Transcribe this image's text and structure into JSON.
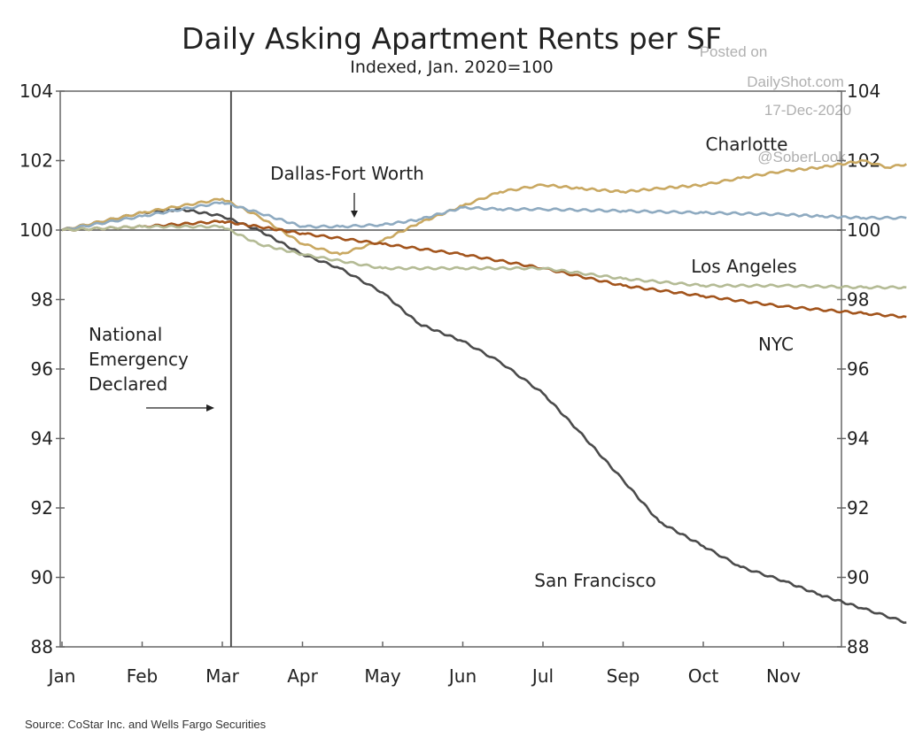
{
  "chart_data": {
    "type": "line",
    "title": "Daily Asking Apartment Rents per SF",
    "subtitle": "Indexed, Jan. 2020=100",
    "source": "Source: CoStar Inc. and Wells Fargo Securities",
    "watermark": [
      "Posted on",
      "DailyShot.com",
      "17-Dec-2020",
      "@SoberLook"
    ],
    "x_tick_labels": [
      "Jan",
      "Feb",
      "Mar",
      "Apr",
      "May",
      "Jun",
      "Jul",
      "Sep",
      "Oct",
      "Nov"
    ],
    "y_ticks": [
      88,
      90,
      92,
      94,
      96,
      98,
      100,
      102,
      104
    ],
    "ylim": [
      88,
      104
    ],
    "y_axis_sides": "both",
    "reference_line": 100,
    "grid": false,
    "event": {
      "date": "2020-03-03",
      "label_lines": [
        "National",
        "Emergency",
        "Declared"
      ]
    },
    "series": [
      {
        "name": "San Francisco",
        "color": "#4b4b4b",
        "points": [
          [
            "2020-01-01",
            100
          ],
          [
            "2020-02-01",
            100.5
          ],
          [
            "2020-02-15",
            100.6
          ],
          [
            "2020-03-01",
            100.4
          ],
          [
            "2020-03-15",
            100.0
          ],
          [
            "2020-04-01",
            99.3
          ],
          [
            "2020-04-15",
            98.9
          ],
          [
            "2020-05-01",
            98.2
          ],
          [
            "2020-05-15",
            97.3
          ],
          [
            "2020-06-01",
            96.8
          ],
          [
            "2020-06-15",
            96.2
          ],
          [
            "2020-07-01",
            95.3
          ],
          [
            "2020-07-15",
            94.2
          ],
          [
            "2020-08-01",
            92.8
          ],
          [
            "2020-08-15",
            91.6
          ],
          [
            "2020-09-01",
            90.9
          ],
          [
            "2020-09-15",
            90.3
          ],
          [
            "2020-10-01",
            89.9
          ],
          [
            "2020-10-15",
            89.5
          ],
          [
            "2020-11-01",
            89.1
          ],
          [
            "2020-11-17",
            88.7
          ]
        ]
      },
      {
        "name": "Charlotte",
        "color": "#c9a861",
        "points": [
          [
            "2020-01-01",
            100
          ],
          [
            "2020-02-01",
            100.5
          ],
          [
            "2020-03-01",
            100.9
          ],
          [
            "2020-03-15",
            100.4
          ],
          [
            "2020-04-01",
            99.6
          ],
          [
            "2020-04-15",
            99.3
          ],
          [
            "2020-05-01",
            99.7
          ],
          [
            "2020-05-15",
            100.2
          ],
          [
            "2020-06-01",
            100.7
          ],
          [
            "2020-06-15",
            101.1
          ],
          [
            "2020-07-01",
            101.3
          ],
          [
            "2020-07-15",
            101.2
          ],
          [
            "2020-08-01",
            101.1
          ],
          [
            "2020-08-15",
            101.2
          ],
          [
            "2020-09-01",
            101.3
          ],
          [
            "2020-09-15",
            101.5
          ],
          [
            "2020-10-01",
            101.7
          ],
          [
            "2020-10-15",
            101.8
          ],
          [
            "2020-11-01",
            102.0
          ],
          [
            "2020-11-10",
            101.8
          ],
          [
            "2020-11-17",
            101.9
          ]
        ]
      },
      {
        "name": "Dallas-Fort Worth",
        "color": "#8eaac0",
        "points": [
          [
            "2020-01-01",
            100
          ],
          [
            "2020-02-01",
            100.4
          ],
          [
            "2020-03-01",
            100.8
          ],
          [
            "2020-03-15",
            100.5
          ],
          [
            "2020-04-01",
            100.1
          ],
          [
            "2020-04-15",
            100.1
          ],
          [
            "2020-05-01",
            100.15
          ],
          [
            "2020-05-15",
            100.3
          ],
          [
            "2020-06-01",
            100.65
          ],
          [
            "2020-06-15",
            100.6
          ],
          [
            "2020-07-01",
            100.6
          ],
          [
            "2020-08-01",
            100.55
          ],
          [
            "2020-09-01",
            100.5
          ],
          [
            "2020-10-01",
            100.45
          ],
          [
            "2020-10-15",
            100.4
          ],
          [
            "2020-11-01",
            100.35
          ],
          [
            "2020-11-17",
            100.35
          ]
        ]
      },
      {
        "name": "NYC",
        "color": "#a2541c",
        "points": [
          [
            "2020-01-01",
            100
          ],
          [
            "2020-02-01",
            100.1
          ],
          [
            "2020-03-01",
            100.25
          ],
          [
            "2020-03-15",
            100.1
          ],
          [
            "2020-04-01",
            99.9
          ],
          [
            "2020-05-01",
            99.6
          ],
          [
            "2020-06-01",
            99.3
          ],
          [
            "2020-07-01",
            98.9
          ],
          [
            "2020-08-01",
            98.4
          ],
          [
            "2020-09-01",
            98.1
          ],
          [
            "2020-10-01",
            97.8
          ],
          [
            "2020-11-01",
            97.6
          ],
          [
            "2020-11-17",
            97.5
          ]
        ]
      },
      {
        "name": "Los Angeles",
        "color": "#b4bb95",
        "points": [
          [
            "2020-01-01",
            100
          ],
          [
            "2020-02-01",
            100.1
          ],
          [
            "2020-03-01",
            100.1
          ],
          [
            "2020-03-15",
            99.6
          ],
          [
            "2020-04-01",
            99.3
          ],
          [
            "2020-05-01",
            98.9
          ],
          [
            "2020-06-01",
            98.9
          ],
          [
            "2020-07-01",
            98.9
          ],
          [
            "2020-08-01",
            98.6
          ],
          [
            "2020-09-01",
            98.4
          ],
          [
            "2020-10-01",
            98.4
          ],
          [
            "2020-11-01",
            98.35
          ],
          [
            "2020-11-17",
            98.35
          ]
        ]
      }
    ]
  }
}
